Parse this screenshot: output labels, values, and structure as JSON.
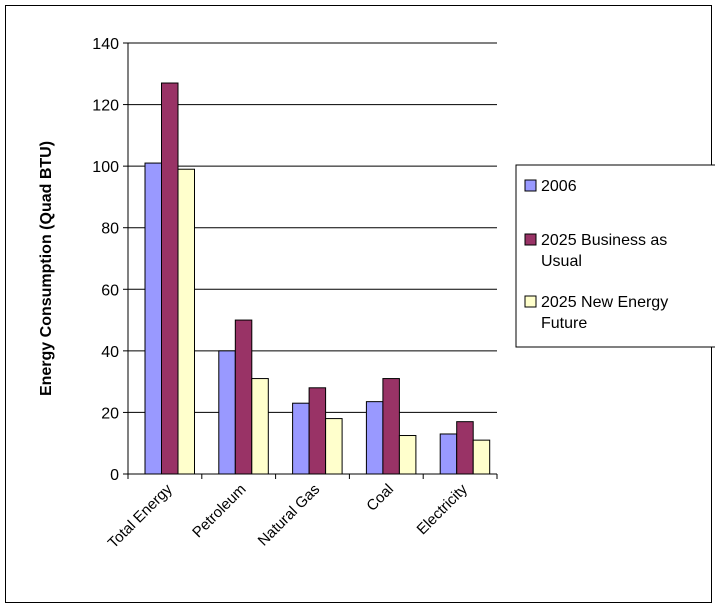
{
  "chart_data": {
    "type": "bar",
    "title": "",
    "xlabel": "",
    "ylabel": "Energy Consumption (Quad BTU)",
    "ylim": [
      0,
      140
    ],
    "yticks": [
      0,
      20,
      40,
      60,
      80,
      100,
      120,
      140
    ],
    "grid": true,
    "legend_position": "right",
    "categories": [
      "Total Energy",
      "Petroleum",
      "Natural Gas",
      "Coal",
      "Electricity"
    ],
    "series": [
      {
        "name": "2006",
        "color": "#9999FF",
        "values": [
          101,
          40,
          23,
          23.5,
          13
        ]
      },
      {
        "name": "2025 Business as Usual",
        "color": "#993366",
        "values": [
          127,
          50,
          28,
          31,
          17
        ]
      },
      {
        "name": "2025 New Energy Future",
        "color": "#FFFFCC",
        "values": [
          99,
          31,
          18,
          12.5,
          11
        ]
      }
    ],
    "legend_lines": [
      [
        "2006"
      ],
      [
        "2025 Business as",
        "Usual"
      ],
      [
        "2025 New Energy",
        "Future"
      ]
    ]
  }
}
